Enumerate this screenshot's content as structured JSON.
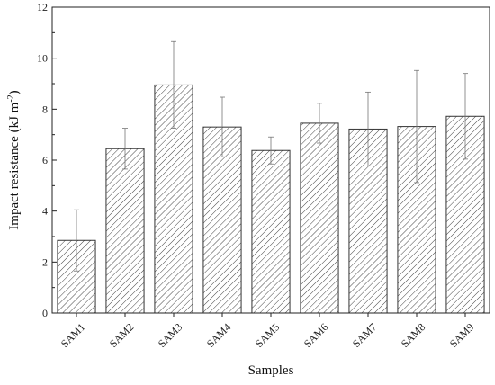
{
  "chart_data": {
    "type": "bar",
    "title": "",
    "xlabel": "Samples",
    "ylabel_main": "Impact resistance (kJ m",
    "ylabel_sup": "-2",
    "ylabel_close": ")",
    "ylim": [
      0,
      12
    ],
    "yticks": [
      0,
      2,
      4,
      6,
      8,
      10,
      12
    ],
    "grid": false,
    "pattern": "diagonal hatch",
    "bar_color": "#333333",
    "categories": [
      "SAM1",
      "SAM2",
      "SAM3",
      "SAM4",
      "SAM5",
      "SAM6",
      "SAM7",
      "SAM8",
      "SAM9"
    ],
    "values": [
      2.85,
      6.45,
      8.95,
      7.3,
      6.38,
      7.45,
      7.22,
      7.32,
      7.72
    ],
    "errors": [
      1.2,
      0.8,
      1.7,
      1.17,
      0.53,
      0.78,
      1.45,
      2.2,
      1.68
    ]
  }
}
